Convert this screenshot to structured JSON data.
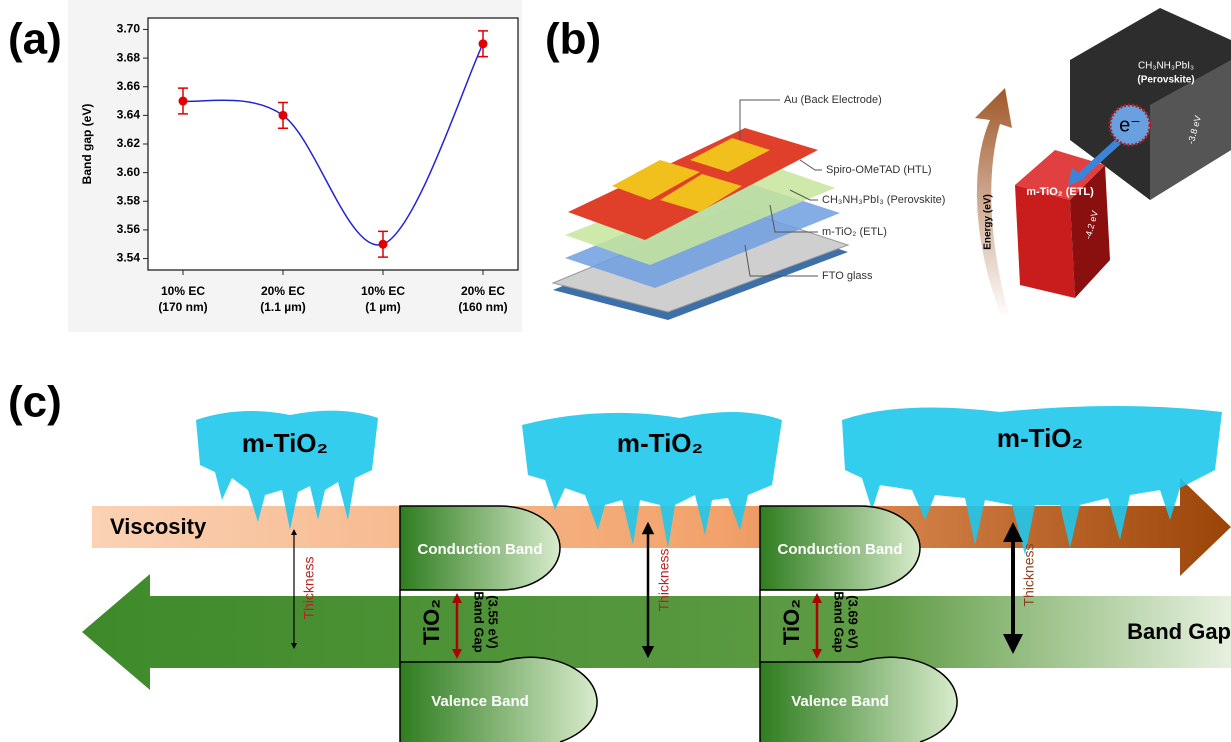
{
  "chart_data": {
    "type": "line",
    "categories": [
      "10% EC\n(170 nm)",
      "20% EC\n(1.1 µm)",
      "10% EC\n(1 µm)",
      "20% EC\n(160 nm)"
    ],
    "values": [
      3.65,
      3.64,
      3.55,
      3.69
    ],
    "errors": [
      0.009,
      0.009,
      0.009,
      0.009
    ],
    "color": "#e00000",
    "line_color": "#2323d6",
    "y_label": "Band gap (eV)",
    "ylim": [
      3.532,
      3.708
    ],
    "yticks": [
      3.54,
      3.56,
      3.58,
      {
        "value": 3.6,
        "label": "3.60"
      },
      3.62,
      3.64,
      3.66,
      3.68,
      {
        "value": 3.7,
        "label": "3.70"
      }
    ]
  },
  "panels": {
    "a": {
      "label": "(a)"
    },
    "b": {
      "label": "(b)",
      "layers": [
        "Au (Back Electrode)",
        "Spiro-OMeTAD (HTL)",
        "CH₃NH₃PbI₃ (Perovskite)",
        "m-TiO₂ (ETL)",
        "FTO glass"
      ],
      "energy": {
        "axis": "Energy (eV)",
        "perovskite": [
          "CH₃NH₃PbI₃",
          "(Perovskite)"
        ],
        "perovskite_level": "-3.8 eV",
        "etl": "m-TiO₂ (ETL)",
        "etl_level": "-4.2 eV",
        "electron": "e⁻"
      }
    },
    "c": {
      "label": "(c)",
      "layer": [
        "m-TiO₂",
        "m-TiO₂",
        "m-TiO₂"
      ],
      "viscosity": "Viscosity",
      "band_gap": "Band Gap",
      "thickness": [
        "Thickness",
        "Thickness",
        "Thickness"
      ],
      "diagrams": [
        {
          "conduction": "Conduction Band",
          "valence": "Valence Band",
          "material": "TiO₂",
          "gap": [
            "Band Gap",
            "(3.55 eV)"
          ]
        },
        {
          "conduction": "Conduction Band",
          "valence": "Valence Band",
          "material": "TiO₂",
          "gap": [
            "Band Gap",
            "(3.69 eV)"
          ]
        }
      ]
    }
  }
}
